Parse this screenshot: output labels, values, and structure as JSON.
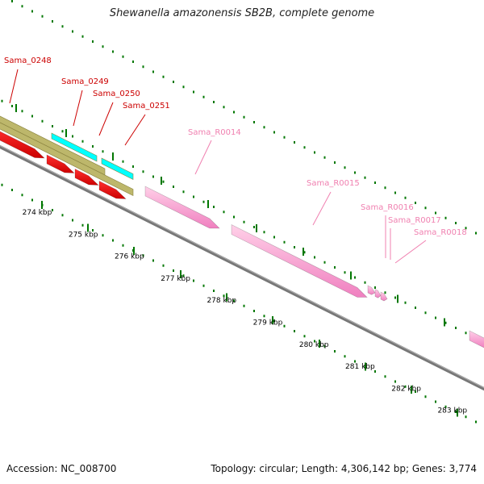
{
  "title": "Shewanella amazonensis SB2B, complete genome",
  "footer": {
    "accession": "Accession: NC_008700",
    "summary": "Topology: circular; Length: 4,306,142 bp; Genes: 3,774"
  },
  "colors": {
    "cds": "#ff0000",
    "rna": "#ffa0d0",
    "olive": "#bdb76b",
    "cyan": "#00ffff",
    "backbone": "#777777",
    "ticks": "#007700",
    "gene_label_red": "#cc0000",
    "gene_label_pink": "#f080b0"
  },
  "axis": {
    "unit": "kbp",
    "tick_labels": [
      "274 kbp",
      "275 kbp",
      "276 kbp",
      "277 kbp",
      "278 kbp",
      "279 kbp",
      "280 kbp",
      "281 kbp",
      "282 kbp",
      "283 kbp"
    ]
  },
  "gene_labels": [
    {
      "name": "Sama_0248",
      "kind": "cds"
    },
    {
      "name": "Sama_0249",
      "kind": "cds"
    },
    {
      "name": "Sama_0250",
      "kind": "cds"
    },
    {
      "name": "Sama_0251",
      "kind": "cds"
    },
    {
      "name": "Sama_R0014",
      "kind": "rna"
    },
    {
      "name": "Sama_R0015",
      "kind": "rna"
    },
    {
      "name": "Sama_R0016",
      "kind": "rna"
    },
    {
      "name": "Sama_R0017",
      "kind": "rna"
    },
    {
      "name": "Sama_R0018",
      "kind": "rna"
    }
  ]
}
